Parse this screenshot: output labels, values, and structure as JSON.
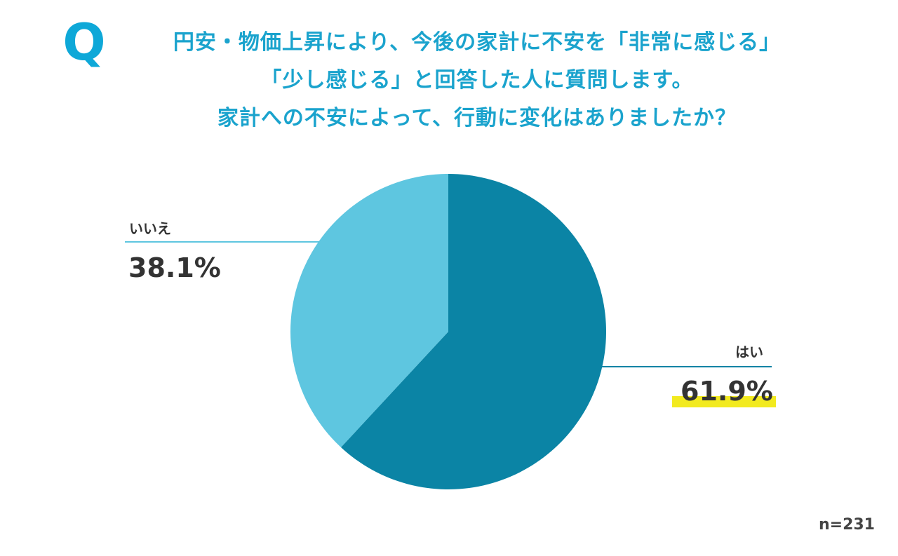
{
  "q_mark": "Q",
  "question": {
    "line1": "円安・物価上昇により、今後の家計に不安を「非常に感じる」",
    "line2": "「少し感じる」と回答した人に質問します。",
    "line3": "家計への不安によって、行動に変化はありましたか？"
  },
  "sample": "n=231",
  "colors": {
    "accent": "#1aa3cd",
    "yes": "#0b84a5",
    "no": "#5ec6e0",
    "highlight": "#f2ea1f",
    "text": "#333333"
  },
  "chart_data": {
    "type": "pie",
    "start_angle": "12 o'clock, clockwise",
    "slices": [
      {
        "label": "はい",
        "value": 61.9,
        "display": "61.9%"
      },
      {
        "label": "いいえ",
        "value": 38.1,
        "display": "38.1%"
      }
    ],
    "n": 231
  }
}
